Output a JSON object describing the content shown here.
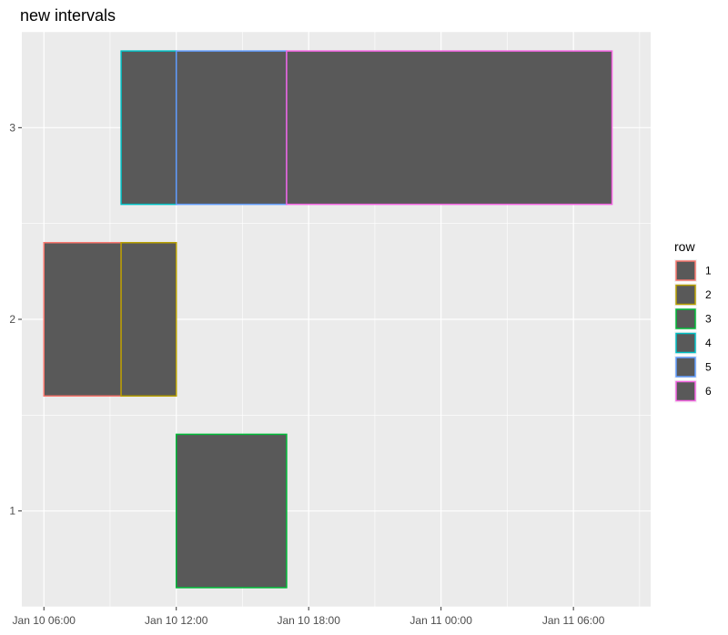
{
  "chart_data": {
    "type": "rect",
    "title": "new intervals",
    "xlabel": "",
    "ylabel": "",
    "x_axis": {
      "type": "datetime",
      "range": [
        "2024-01-10T05:00:00",
        "2024-01-11T09:30:00"
      ],
      "ticks": [
        {
          "value": "2024-01-10T06:00:00",
          "label": "Jan 10 06:00"
        },
        {
          "value": "2024-01-10T12:00:00",
          "label": "Jan 10 12:00"
        },
        {
          "value": "2024-01-10T18:00:00",
          "label": "Jan 10 18:00"
        },
        {
          "value": "2024-01-11T00:00:00",
          "label": "Jan 11 00:00"
        },
        {
          "value": "2024-01-11T06:00:00",
          "label": "Jan 11 06:00"
        }
      ]
    },
    "y_axis": {
      "range": [
        0.5,
        3.5
      ],
      "ticks": [
        {
          "value": 1,
          "label": "1"
        },
        {
          "value": 2,
          "label": "2"
        },
        {
          "value": 3,
          "label": "3"
        }
      ]
    },
    "grid": true,
    "fill_color": "#595959",
    "legend": {
      "title": "row",
      "position": "right",
      "entries": [
        {
          "label": "1",
          "color": "#F8766D"
        },
        {
          "label": "2",
          "color": "#B79F00"
        },
        {
          "label": "3",
          "color": "#00BA38"
        },
        {
          "label": "4",
          "color": "#00BFC4"
        },
        {
          "label": "5",
          "color": "#619CFF"
        },
        {
          "label": "6",
          "color": "#F564E3"
        }
      ]
    },
    "intervals": [
      {
        "row": "1",
        "y": 2,
        "xmin": "2024-01-10T06:00:00",
        "xmax": "2024-01-10T09:30:00"
      },
      {
        "row": "2",
        "y": 2,
        "xmin": "2024-01-10T09:30:00",
        "xmax": "2024-01-10T12:00:00"
      },
      {
        "row": "3",
        "y": 1,
        "xmin": "2024-01-10T12:00:00",
        "xmax": "2024-01-10T17:00:00"
      },
      {
        "row": "4",
        "y": 3,
        "xmin": "2024-01-10T09:30:00",
        "xmax": "2024-01-10T12:00:00"
      },
      {
        "row": "5",
        "y": 3,
        "xmin": "2024-01-10T12:00:00",
        "xmax": "2024-01-10T17:00:00"
      },
      {
        "row": "6",
        "y": 3,
        "xmin": "2024-01-10T17:00:00",
        "xmax": "2024-01-11T07:45:00"
      }
    ],
    "bar_half_height": 0.4
  }
}
